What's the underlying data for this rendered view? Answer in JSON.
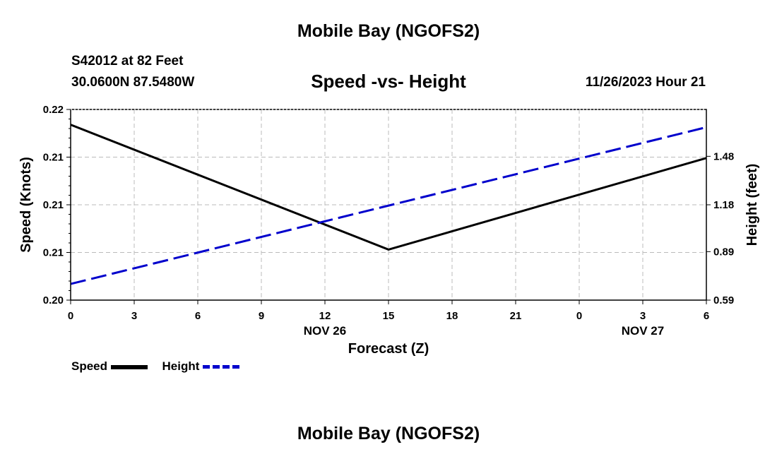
{
  "page": {
    "top_title": "Mobile Bay (NGOFS2)",
    "bottom_title": "Mobile Bay (NGOFS2)",
    "station_line": "S42012 at 82 Feet",
    "coords_line": "30.0600N  87.5480W",
    "datetime": "11/26/2023 Hour 21"
  },
  "chart_data": {
    "type": "line",
    "title": "Speed -vs- Height",
    "xlabel": "Forecast (Z)",
    "ylabel_left": "Speed (Knots)",
    "ylabel_right": "Height (feet)",
    "x_ticks": [
      "0",
      "3",
      "6",
      "9",
      "12",
      "15",
      "18",
      "21",
      "0",
      "3",
      "6"
    ],
    "x_hours": [
      0,
      3,
      6,
      9,
      12,
      15,
      18,
      21,
      24,
      27,
      30
    ],
    "date_labels": [
      {
        "label": "NOV 26",
        "hour": 12
      },
      {
        "label": "NOV 27",
        "hour": 27
      }
    ],
    "left_axis": {
      "ylim": [
        0.2,
        0.22
      ],
      "tick_values": [
        0.2,
        0.205,
        0.21,
        0.215,
        0.22
      ],
      "tick_labels": [
        "0.20",
        "0.21",
        "0.21",
        "0.21",
        "0.22"
      ]
    },
    "right_axis": {
      "ylim": [
        0.59,
        1.77
      ],
      "tick_values": [
        0.59,
        0.89,
        1.18,
        1.48
      ],
      "tick_labels": [
        "0.59",
        "0.89",
        "1.18",
        "1.48"
      ]
    },
    "grid": true,
    "series": [
      {
        "name": "Speed",
        "axis": "left",
        "color": "#000000",
        "dash": "solid",
        "x": [
          0,
          15,
          30
        ],
        "y": [
          0.2184,
          0.2053,
          0.2149
        ]
      },
      {
        "name": "Height",
        "axis": "right",
        "color": "#0000cc",
        "dash": "dashed",
        "x": [
          0,
          30
        ],
        "y": [
          0.69,
          1.66
        ]
      }
    ],
    "legend": [
      {
        "label": "Speed",
        "color": "#000000",
        "dash": "solid"
      },
      {
        "label": "Height",
        "color": "#0000cc",
        "dash": "dashed"
      }
    ]
  }
}
